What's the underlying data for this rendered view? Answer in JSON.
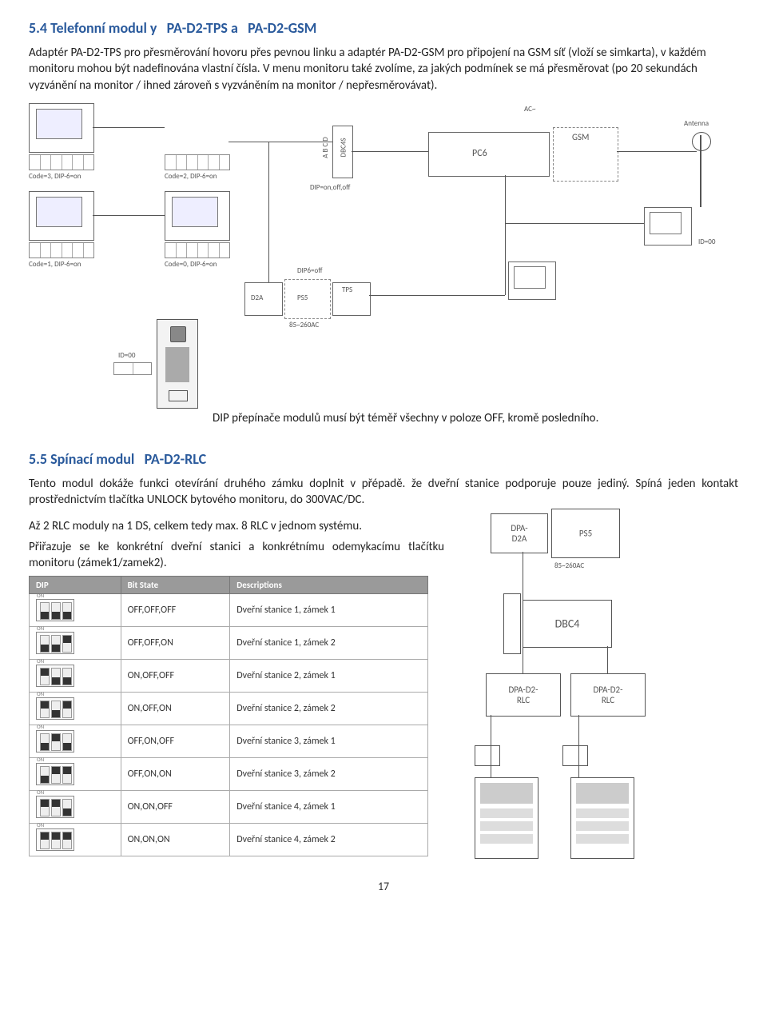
{
  "section54": {
    "title_prefix": "5.4 Telefonní modul y",
    "title_code1": "PA-D2-TPS a",
    "title_code2": "PA-D2-GSM",
    "para1": "Adaptér PA-D2-TPS pro přesměrování hovoru přes pevnou linku a adaptér PA-D2-GSM pro připojení na GSM síť (vloží se simkarta), v každém monitoru mohou být nadefinována vlastní čísla. V menu monitoru také zvolíme, za jakých podmínek se má přesměrovat (po 20 sekundách vyzvánění na monitor / ihned zároveň s vyzváněním na monitor / nepřesměrovávat).",
    "diagram": {
      "monitor_labels": [
        "Code=3, DIP-6=on",
        "Code=2, DIP-6=on",
        "Code=1, DIP-6=on",
        "Code=0, DIP-6=on"
      ],
      "dbc4s": "DBC4S",
      "abcd": "A B C D",
      "dip_onoffoff": "DIP=on,off,off",
      "pc6": "PC6",
      "gsm": "GSM",
      "ac": "AC~",
      "antenna": "Antenna",
      "d2a": "D2A",
      "ps5": "PS5",
      "tps": "TPS",
      "acrange": "85~260AC",
      "dip6off": "DIP6=off",
      "id00_right": "ID=00",
      "id00_left": "ID=00"
    },
    "caption": "DIP přepínače modulů musí být téměř všechny v poloze OFF, kromě posledního."
  },
  "section55": {
    "title_prefix": "5.5 Spínací modul",
    "title_code": "PA-D2-RLC",
    "para1": "Tento modul dokáže funkci otevírání druhého zámku doplnit v přépadě. že dveřní stanice podporuje pouze jediný. Spíná jeden kontakt prostřednictvím tlačítka UNLOCK bytového monitoru, do 300VAC/DC.",
    "para2": "Až 2 RLC moduly na 1 DS, celkem tedy max. 8 RLC v jednom systému.",
    "para3": "Přiřazuje se ke konkrétní dveřní stanici a konkrétnímu odemykacímu tlačítku monitoru (zámek1/zamek2).",
    "table": {
      "headers": [
        "DIP",
        "Bit State",
        "Descriptions"
      ],
      "rows": [
        {
          "bits": "OFF,OFF,OFF",
          "desc": "Dveřní stanice 1, zámek 1",
          "sw": [
            "off",
            "off",
            "off"
          ]
        },
        {
          "bits": "OFF,OFF,ON",
          "desc": "Dveřní stanice 1, zámek 2",
          "sw": [
            "off",
            "off",
            "on"
          ]
        },
        {
          "bits": "ON,OFF,OFF",
          "desc": "Dveřní stanice 2, zámek 1",
          "sw": [
            "on",
            "off",
            "off"
          ]
        },
        {
          "bits": "ON,OFF,ON",
          "desc": "Dveřní stanice 2, zámek 2",
          "sw": [
            "on",
            "off",
            "on"
          ]
        },
        {
          "bits": "OFF,ON,OFF",
          "desc": "Dveřní stanice 3, zámek 1",
          "sw": [
            "off",
            "on",
            "off"
          ]
        },
        {
          "bits": "OFF,ON,ON",
          "desc": "Dveřní stanice 3, zámek 2",
          "sw": [
            "off",
            "on",
            "on"
          ]
        },
        {
          "bits": "ON,ON,OFF",
          "desc": "Dveřní stanice 4, zámek 1",
          "sw": [
            "on",
            "on",
            "off"
          ]
        },
        {
          "bits": "ON,ON,ON",
          "desc": "Dveřní stanice 4, zámek 2",
          "sw": [
            "on",
            "on",
            "on"
          ]
        }
      ]
    },
    "diagram2": {
      "dpa_d2a": "DPA-D2A",
      "ps5": "PS5",
      "acrange": "85~260AC",
      "dbc4": "DBC4",
      "rlc": "DPA-D2-RLC"
    }
  },
  "page_number": "17",
  "colors": {
    "heading": "#2a5a9c",
    "text": "#222222",
    "border": "#666666",
    "th_bg": "#9a9a9a"
  }
}
